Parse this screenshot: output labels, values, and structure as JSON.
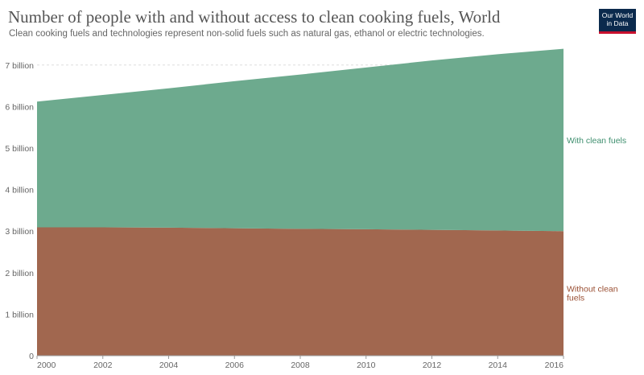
{
  "header": {
    "title": "Number of people with and without access to clean cooking fuels, World",
    "subtitle": "Clean cooking fuels and technologies represent non-solid fuels such as natural gas, ethanol or electric technologies.",
    "logo_line1": "Our World",
    "logo_line2": "in Data"
  },
  "chart_data": {
    "type": "area",
    "stacked": true,
    "x": [
      2000,
      2002,
      2004,
      2006,
      2008,
      2010,
      2012,
      2014,
      2016
    ],
    "xlim": [
      2000,
      2016
    ],
    "ylim": [
      0,
      7500000000
    ],
    "y_ticks": [
      0,
      1000000000,
      2000000000,
      3000000000,
      4000000000,
      5000000000,
      6000000000,
      7000000000
    ],
    "y_tick_labels": [
      "0",
      "1 billion",
      "2 billion",
      "3 billion",
      "4 billion",
      "5 billion",
      "6 billion",
      "7 billion"
    ],
    "x_tick_labels": [
      "2000",
      "2002",
      "2004",
      "2006",
      "2008",
      "2010",
      "2012",
      "2014",
      "2016"
    ],
    "series": [
      {
        "name": "Without clean fuels",
        "label_lines": [
          "Without clean",
          "fuels"
        ],
        "color": "#a1674f",
        "values": [
          3090000000,
          3090000000,
          3085000000,
          3070000000,
          3055000000,
          3045000000,
          3030000000,
          3015000000,
          3000000000
        ]
      },
      {
        "name": "With clean fuels",
        "label_lines": [
          "With clean fuels"
        ],
        "color": "#6daa8e",
        "values": [
          3030000000,
          3190000000,
          3355000000,
          3540000000,
          3715000000,
          3895000000,
          4080000000,
          4245000000,
          4390000000
        ]
      }
    ],
    "grid": "horizontal-dashed",
    "legend": "inline-right"
  }
}
